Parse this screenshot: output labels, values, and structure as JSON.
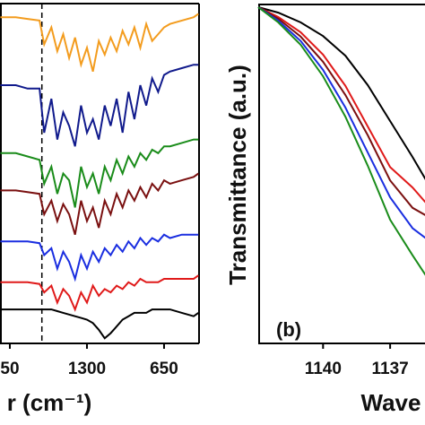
{
  "chart_data": [
    {
      "type": "line",
      "x_label": "r (cm⁻¹)",
      "xlim": [
        2033,
        355
      ],
      "xticks": [
        {
          "value": 1950,
          "label": "50"
        },
        1300,
        650
      ],
      "ylim": [
        0,
        100
      ],
      "reference_x": 1680,
      "x": [
        2030,
        1900,
        1800,
        1700,
        1660,
        1600,
        1550,
        1500,
        1450,
        1400,
        1350,
        1300,
        1250,
        1200,
        1150,
        1100,
        1050,
        1000,
        950,
        900,
        850,
        800,
        750,
        700,
        650,
        600,
        500,
        400,
        360
      ],
      "series": [
        {
          "color": "#f39c1e",
          "values": [
            96,
            96,
            95.5,
            95,
            88,
            93,
            86,
            91,
            84,
            90,
            82,
            87,
            80,
            89,
            85,
            90,
            86,
            92,
            88,
            93,
            87,
            94,
            89,
            91,
            93,
            94,
            95,
            96,
            97
          ]
        },
        {
          "color": "#101a8c",
          "values": [
            76,
            76,
            75,
            75,
            62,
            72,
            60,
            68,
            64,
            58,
            70,
            62,
            66,
            60,
            70,
            64,
            72,
            62,
            74,
            66,
            76,
            70,
            78,
            74,
            79,
            80,
            81,
            82,
            82
          ]
        },
        {
          "color": "#1a8c1a",
          "values": [
            56,
            56,
            55,
            54,
            47,
            52,
            44,
            50,
            48,
            40,
            52,
            46,
            50,
            44,
            52,
            48,
            54,
            50,
            55,
            52,
            56,
            54,
            57,
            56,
            58,
            58,
            59,
            60,
            60
          ]
        },
        {
          "color": "#7a1010",
          "values": [
            45,
            45,
            44.5,
            44,
            38,
            42,
            36,
            41,
            38,
            32,
            42,
            36,
            40,
            34,
            42,
            38,
            44,
            40,
            45,
            42,
            46,
            43,
            47,
            45,
            48,
            47,
            48,
            49,
            50
          ]
        },
        {
          "color": "#1a2ee0",
          "values": [
            30,
            30,
            30,
            29.5,
            26,
            28,
            22,
            27,
            24,
            19,
            26,
            22,
            27,
            24,
            28,
            26,
            29,
            27,
            30,
            28,
            31,
            29,
            31,
            30,
            32,
            31,
            32,
            32,
            32
          ]
        },
        {
          "color": "#e01a1a",
          "values": [
            18,
            18,
            18,
            17.5,
            15,
            17,
            12,
            16,
            14,
            10,
            15,
            12,
            17,
            14,
            16,
            15,
            17,
            16,
            18,
            17,
            19,
            18,
            18,
            18,
            19,
            19,
            19,
            19,
            20
          ]
        },
        {
          "color": "#000000",
          "values": [
            10,
            10,
            10,
            10,
            10,
            10,
            9.5,
            9,
            8.5,
            8,
            7.5,
            7,
            6,
            4,
            1.5,
            3,
            5,
            7,
            8,
            9,
            9,
            9,
            10,
            10,
            10,
            10,
            9,
            8,
            9
          ]
        }
      ]
    },
    {
      "type": "line",
      "x_label": "Wave",
      "y_label": "Transmittance (a.u.)",
      "annotation": "(b)",
      "xlim": [
        1142.9,
        1135.2
      ],
      "xticks": [
        1140,
        1137
      ],
      "ylim": [
        0,
        100
      ],
      "x": [
        1142.9,
        1142,
        1141,
        1140,
        1139,
        1138,
        1137,
        1136,
        1135.2
      ],
      "series": [
        {
          "color": "#000000",
          "values": [
            99.2,
            97.6,
            94.7,
            90.7,
            84.9,
            76.2,
            65.6,
            55.0,
            46.0
          ]
        },
        {
          "color": "#e01a1a",
          "values": [
            99.2,
            96.3,
            91.8,
            85.2,
            76.0,
            64.0,
            52.0,
            46.0,
            40.0
          ]
        },
        {
          "color": "#7a1010",
          "values": [
            99.2,
            95.8,
            90.5,
            83.1,
            73.3,
            61.4,
            48.1,
            40.0,
            37.0
          ]
        },
        {
          "color": "#1a2ee0",
          "values": [
            99.2,
            95.2,
            89.2,
            80.7,
            69.6,
            56.3,
            43.1,
            34.0,
            30.0
          ]
        },
        {
          "color": "#1a8c1a",
          "values": [
            99.2,
            94.7,
            88.1,
            78.8,
            66.9,
            52.4,
            36.5,
            26.0,
            18.0
          ]
        }
      ]
    }
  ]
}
